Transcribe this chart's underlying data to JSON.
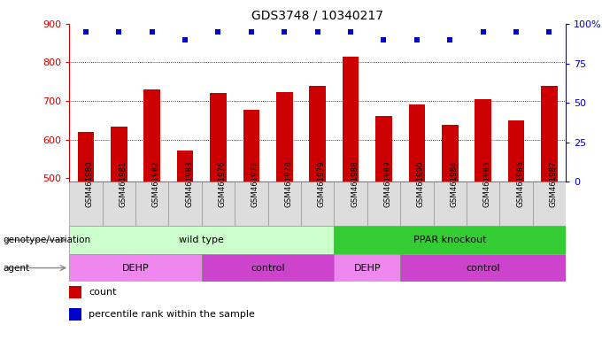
{
  "title": "GDS3748 / 10340217",
  "samples": [
    "GSM461980",
    "GSM461981",
    "GSM461982",
    "GSM461983",
    "GSM461976",
    "GSM461977",
    "GSM461978",
    "GSM461979",
    "GSM461988",
    "GSM461989",
    "GSM461990",
    "GSM461984",
    "GSM461985",
    "GSM461986",
    "GSM461987"
  ],
  "counts": [
    620,
    633,
    730,
    572,
    720,
    678,
    723,
    740,
    815,
    660,
    690,
    638,
    705,
    650,
    740
  ],
  "percentile_ranks": [
    95,
    95,
    95,
    90,
    95,
    95,
    95,
    95,
    95,
    90,
    90,
    90,
    95,
    95,
    95
  ],
  "ylim_left": [
    490,
    900
  ],
  "ylim_right": [
    0,
    100
  ],
  "yticks_left": [
    500,
    600,
    700,
    800,
    900
  ],
  "yticks_right": [
    0,
    25,
    50,
    75,
    100
  ],
  "bar_color": "#cc0000",
  "dot_color": "#0000cc",
  "bar_bottom": 490,
  "genotype_groups": [
    {
      "label": "wild type",
      "start": 0,
      "end": 8,
      "color": "#ccffcc"
    },
    {
      "label": "PPAR knockout",
      "start": 8,
      "end": 15,
      "color": "#33cc33"
    }
  ],
  "agent_groups": [
    {
      "label": "DEHP",
      "start": 0,
      "end": 4,
      "color": "#ee88ee"
    },
    {
      "label": "control",
      "start": 4,
      "end": 8,
      "color": "#cc44cc"
    },
    {
      "label": "DEHP",
      "start": 8,
      "end": 10,
      "color": "#ee88ee"
    },
    {
      "label": "control",
      "start": 10,
      "end": 15,
      "color": "#cc44cc"
    }
  ],
  "left_label_color": "#cc0000",
  "right_label_color": "#0000cc",
  "xtick_bg_color": "#dddddd",
  "xtick_border_color": "#888888"
}
